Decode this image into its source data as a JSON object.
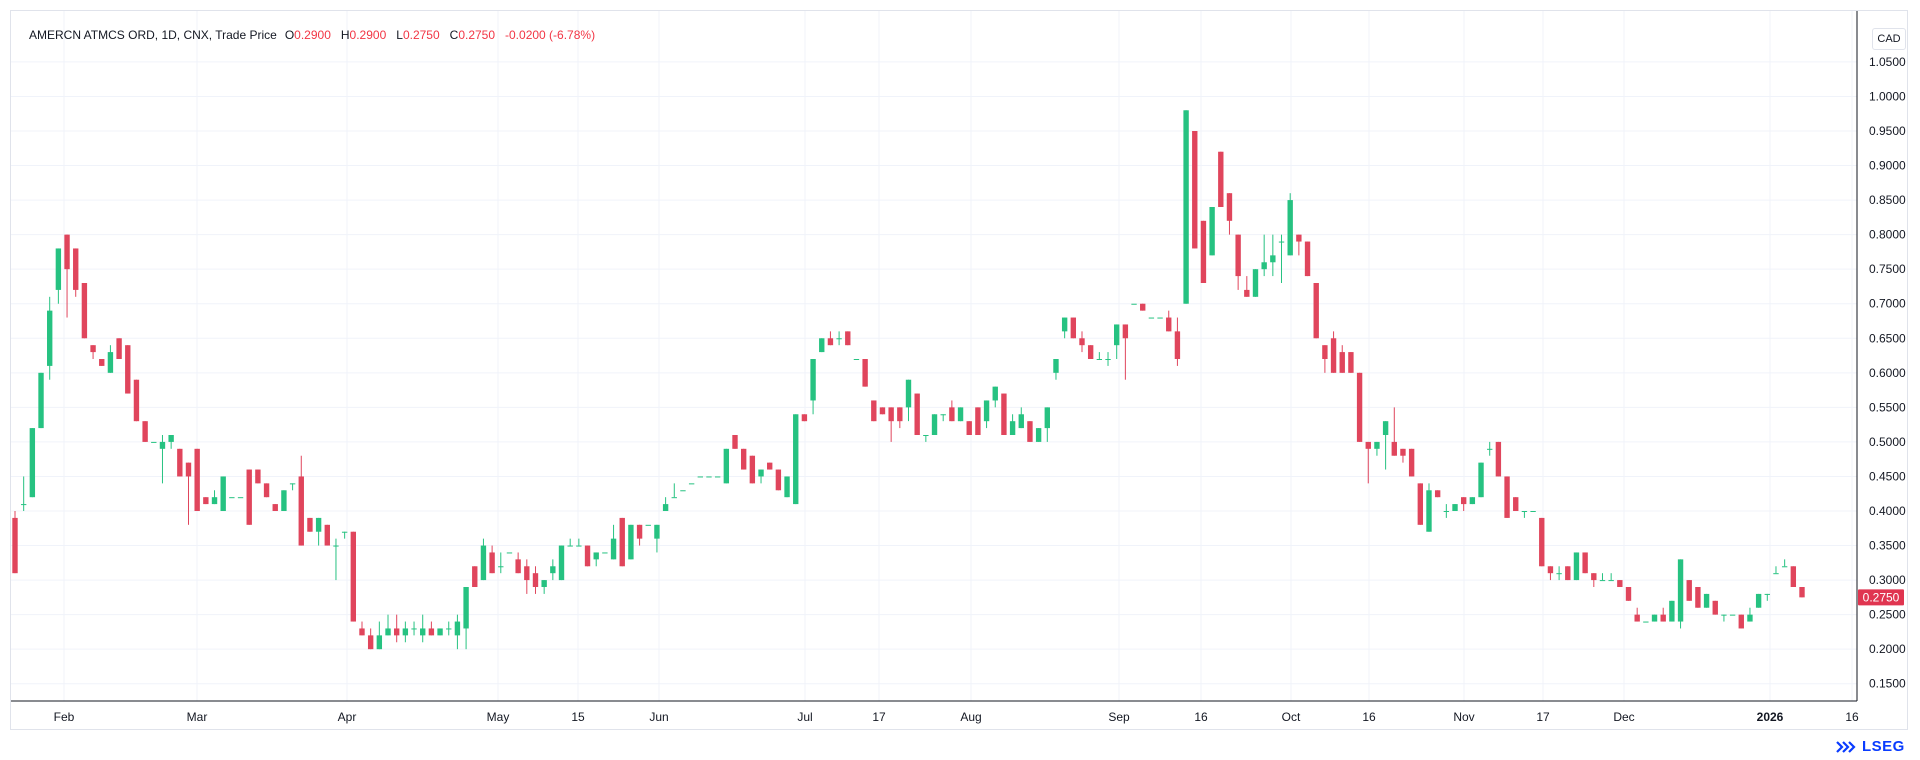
{
  "legend": {
    "symbol": "AMERCN ATMCS ORD, 1D, CNX, Trade Price",
    "open_label": "O",
    "open": "0.2900",
    "high_label": "H",
    "high": "0.2900",
    "low_label": "L",
    "low": "0.2750",
    "close_label": "C",
    "close": "0.2750",
    "change": "-0.0200 (-6.78%)"
  },
  "currency": "CAD",
  "last_price_tag": "0.2750",
  "brand": "LSEG",
  "colors": {
    "up": "#26c281",
    "down": "#e0455c",
    "grid": "#f0f3fa",
    "axis_text": "#131722",
    "price_tag": "#e03550"
  },
  "chart_data": {
    "type": "candlestick",
    "y_axis": {
      "min": 0.125,
      "max": 1.06,
      "ticks": [
        "0.1500",
        "0.2000",
        "0.2500",
        "0.3000",
        "0.3500",
        "0.4000",
        "0.4500",
        "0.5000",
        "0.5500",
        "0.6000",
        "0.6500",
        "0.7000",
        "0.7500",
        "0.8000",
        "0.8500",
        "0.9000",
        "0.9500",
        "1.0000",
        "1.0500"
      ]
    },
    "x_axis_labels": [
      "Feb",
      "Mar",
      "Apr",
      "May",
      "15",
      "Jun",
      "Jul",
      "17",
      "Aug",
      "Sep",
      "16",
      "Oct",
      "16",
      "Nov",
      "17",
      "Dec",
      "2026",
      "16"
    ],
    "grid": true,
    "candles": [
      [
        0.39,
        0.4,
        0.31,
        0.31
      ],
      [
        0.41,
        0.45,
        0.4,
        0.41
      ],
      [
        0.42,
        0.52,
        0.42,
        0.52
      ],
      [
        0.52,
        0.6,
        0.52,
        0.6
      ],
      [
        0.61,
        0.71,
        0.59,
        0.69
      ],
      [
        0.72,
        0.78,
        0.7,
        0.78
      ],
      [
        0.8,
        0.8,
        0.68,
        0.75
      ],
      [
        0.78,
        0.78,
        0.71,
        0.72
      ],
      [
        0.73,
        0.73,
        0.65,
        0.65
      ],
      [
        0.64,
        0.64,
        0.62,
        0.63
      ],
      [
        0.62,
        0.62,
        0.61,
        0.61
      ],
      [
        0.6,
        0.64,
        0.6,
        0.63
      ],
      [
        0.65,
        0.65,
        0.62,
        0.62
      ],
      [
        0.64,
        0.64,
        0.57,
        0.57
      ],
      [
        0.59,
        0.59,
        0.53,
        0.53
      ],
      [
        0.53,
        0.53,
        0.5,
        0.5
      ],
      [
        0.5,
        0.5,
        0.5,
        0.5
      ],
      [
        0.49,
        0.51,
        0.44,
        0.5
      ],
      [
        0.5,
        0.51,
        0.49,
        0.51
      ],
      [
        0.49,
        0.49,
        0.45,
        0.45
      ],
      [
        0.47,
        0.47,
        0.38,
        0.45
      ],
      [
        0.49,
        0.49,
        0.4,
        0.4
      ],
      [
        0.42,
        0.42,
        0.41,
        0.41
      ],
      [
        0.41,
        0.43,
        0.41,
        0.42
      ],
      [
        0.4,
        0.45,
        0.4,
        0.45
      ],
      [
        0.42,
        0.42,
        0.42,
        0.42
      ],
      [
        0.42,
        0.42,
        0.42,
        0.42
      ],
      [
        0.46,
        0.46,
        0.38,
        0.38
      ],
      [
        0.46,
        0.46,
        0.44,
        0.44
      ],
      [
        0.44,
        0.44,
        0.42,
        0.42
      ],
      [
        0.41,
        0.41,
        0.4,
        0.4
      ],
      [
        0.4,
        0.43,
        0.4,
        0.43
      ],
      [
        0.44,
        0.44,
        0.43,
        0.44
      ],
      [
        0.45,
        0.48,
        0.35,
        0.35
      ],
      [
        0.39,
        0.39,
        0.37,
        0.37
      ],
      [
        0.37,
        0.39,
        0.35,
        0.39
      ],
      [
        0.38,
        0.38,
        0.35,
        0.35
      ],
      [
        0.35,
        0.36,
        0.3,
        0.35
      ],
      [
        0.37,
        0.37,
        0.36,
        0.37
      ],
      [
        0.37,
        0.37,
        0.24,
        0.24
      ],
      [
        0.23,
        0.24,
        0.22,
        0.22
      ],
      [
        0.22,
        0.23,
        0.2,
        0.2
      ],
      [
        0.2,
        0.24,
        0.2,
        0.22
      ],
      [
        0.22,
        0.25,
        0.22,
        0.23
      ],
      [
        0.23,
        0.25,
        0.21,
        0.22
      ],
      [
        0.22,
        0.24,
        0.21,
        0.23
      ],
      [
        0.23,
        0.24,
        0.22,
        0.23
      ],
      [
        0.22,
        0.25,
        0.21,
        0.23
      ],
      [
        0.23,
        0.24,
        0.22,
        0.22
      ],
      [
        0.22,
        0.23,
        0.22,
        0.23
      ],
      [
        0.23,
        0.24,
        0.22,
        0.23
      ],
      [
        0.22,
        0.25,
        0.2,
        0.24
      ],
      [
        0.23,
        0.29,
        0.2,
        0.29
      ],
      [
        0.32,
        0.32,
        0.29,
        0.29
      ],
      [
        0.3,
        0.36,
        0.3,
        0.35
      ],
      [
        0.34,
        0.35,
        0.31,
        0.31
      ],
      [
        0.32,
        0.34,
        0.31,
        0.32
      ],
      [
        0.34,
        0.34,
        0.34,
        0.34
      ],
      [
        0.33,
        0.34,
        0.31,
        0.31
      ],
      [
        0.32,
        0.33,
        0.28,
        0.3
      ],
      [
        0.31,
        0.32,
        0.28,
        0.29
      ],
      [
        0.29,
        0.3,
        0.28,
        0.3
      ],
      [
        0.31,
        0.33,
        0.3,
        0.32
      ],
      [
        0.3,
        0.35,
        0.3,
        0.35
      ],
      [
        0.35,
        0.36,
        0.35,
        0.35
      ],
      [
        0.35,
        0.36,
        0.35,
        0.35
      ],
      [
        0.35,
        0.35,
        0.32,
        0.32
      ],
      [
        0.33,
        0.34,
        0.32,
        0.34
      ],
      [
        0.34,
        0.34,
        0.34,
        0.34
      ],
      [
        0.33,
        0.38,
        0.33,
        0.36
      ],
      [
        0.39,
        0.39,
        0.32,
        0.32
      ],
      [
        0.33,
        0.38,
        0.33,
        0.38
      ],
      [
        0.38,
        0.38,
        0.35,
        0.36
      ],
      [
        0.38,
        0.38,
        0.38,
        0.38
      ],
      [
        0.36,
        0.38,
        0.34,
        0.38
      ],
      [
        0.4,
        0.42,
        0.4,
        0.41
      ],
      [
        0.42,
        0.44,
        0.42,
        0.42
      ],
      [
        0.43,
        0.43,
        0.43,
        0.43
      ],
      [
        0.44,
        0.44,
        0.44,
        0.44
      ],
      [
        0.45,
        0.45,
        0.45,
        0.45
      ],
      [
        0.45,
        0.45,
        0.45,
        0.45
      ],
      [
        0.45,
        0.45,
        0.45,
        0.45
      ],
      [
        0.44,
        0.49,
        0.44,
        0.49
      ],
      [
        0.51,
        0.51,
        0.49,
        0.49
      ],
      [
        0.49,
        0.49,
        0.46,
        0.46
      ],
      [
        0.48,
        0.48,
        0.44,
        0.44
      ],
      [
        0.45,
        0.46,
        0.44,
        0.46
      ],
      [
        0.47,
        0.47,
        0.46,
        0.46
      ],
      [
        0.46,
        0.46,
        0.43,
        0.43
      ],
      [
        0.42,
        0.45,
        0.42,
        0.45
      ],
      [
        0.41,
        0.54,
        0.41,
        0.54
      ],
      [
        0.54,
        0.54,
        0.53,
        0.53
      ],
      [
        0.56,
        0.62,
        0.54,
        0.62
      ],
      [
        0.63,
        0.65,
        0.63,
        0.65
      ],
      [
        0.65,
        0.66,
        0.64,
        0.64
      ],
      [
        0.65,
        0.66,
        0.64,
        0.65
      ],
      [
        0.66,
        0.66,
        0.64,
        0.64
      ],
      [
        0.62,
        0.62,
        0.62,
        0.62
      ],
      [
        0.62,
        0.62,
        0.58,
        0.58
      ],
      [
        0.56,
        0.56,
        0.53,
        0.53
      ],
      [
        0.55,
        0.55,
        0.54,
        0.54
      ],
      [
        0.55,
        0.55,
        0.5,
        0.53
      ],
      [
        0.55,
        0.55,
        0.52,
        0.53
      ],
      [
        0.55,
        0.59,
        0.53,
        0.59
      ],
      [
        0.57,
        0.57,
        0.51,
        0.51
      ],
      [
        0.51,
        0.51,
        0.5,
        0.51
      ],
      [
        0.51,
        0.54,
        0.51,
        0.54
      ],
      [
        0.54,
        0.54,
        0.53,
        0.54
      ],
      [
        0.55,
        0.56,
        0.53,
        0.53
      ],
      [
        0.53,
        0.55,
        0.53,
        0.55
      ],
      [
        0.53,
        0.53,
        0.51,
        0.51
      ],
      [
        0.55,
        0.55,
        0.51,
        0.51
      ],
      [
        0.53,
        0.56,
        0.52,
        0.56
      ],
      [
        0.56,
        0.58,
        0.55,
        0.58
      ],
      [
        0.57,
        0.57,
        0.51,
        0.51
      ],
      [
        0.51,
        0.54,
        0.51,
        0.53
      ],
      [
        0.52,
        0.55,
        0.52,
        0.54
      ],
      [
        0.53,
        0.53,
        0.5,
        0.5
      ],
      [
        0.5,
        0.52,
        0.5,
        0.52
      ],
      [
        0.52,
        0.55,
        0.5,
        0.55
      ],
      [
        0.6,
        0.62,
        0.59,
        0.62
      ],
      [
        0.66,
        0.68,
        0.65,
        0.68
      ],
      [
        0.68,
        0.68,
        0.65,
        0.65
      ],
      [
        0.65,
        0.66,
        0.63,
        0.64
      ],
      [
        0.64,
        0.64,
        0.62,
        0.62
      ],
      [
        0.62,
        0.63,
        0.62,
        0.62
      ],
      [
        0.62,
        0.63,
        0.61,
        0.62
      ],
      [
        0.64,
        0.67,
        0.62,
        0.67
      ],
      [
        0.67,
        0.67,
        0.59,
        0.65
      ],
      [
        0.7,
        0.7,
        0.7,
        0.7
      ],
      [
        0.7,
        0.7,
        0.69,
        0.69
      ],
      [
        0.68,
        0.68,
        0.68,
        0.68
      ],
      [
        0.68,
        0.68,
        0.68,
        0.68
      ],
      [
        0.68,
        0.69,
        0.66,
        0.66
      ],
      [
        0.66,
        0.68,
        0.61,
        0.62
      ],
      [
        0.7,
        0.98,
        0.7,
        0.98
      ],
      [
        0.95,
        0.95,
        0.78,
        0.78
      ],
      [
        0.82,
        0.82,
        0.73,
        0.73
      ],
      [
        0.77,
        0.84,
        0.77,
        0.84
      ],
      [
        0.92,
        0.92,
        0.84,
        0.84
      ],
      [
        0.86,
        0.86,
        0.8,
        0.82
      ],
      [
        0.8,
        0.8,
        0.72,
        0.74
      ],
      [
        0.72,
        0.74,
        0.71,
        0.71
      ],
      [
        0.71,
        0.75,
        0.71,
        0.75
      ],
      [
        0.75,
        0.8,
        0.74,
        0.76
      ],
      [
        0.76,
        0.8,
        0.74,
        0.77
      ],
      [
        0.79,
        0.8,
        0.73,
        0.79
      ],
      [
        0.77,
        0.86,
        0.77,
        0.85
      ],
      [
        0.8,
        0.8,
        0.77,
        0.79
      ],
      [
        0.79,
        0.79,
        0.74,
        0.74
      ],
      [
        0.73,
        0.73,
        0.65,
        0.65
      ],
      [
        0.64,
        0.64,
        0.6,
        0.62
      ],
      [
        0.65,
        0.66,
        0.6,
        0.6
      ],
      [
        0.63,
        0.64,
        0.6,
        0.6
      ],
      [
        0.63,
        0.63,
        0.6,
        0.6
      ],
      [
        0.6,
        0.6,
        0.5,
        0.5
      ],
      [
        0.5,
        0.5,
        0.44,
        0.49
      ],
      [
        0.49,
        0.5,
        0.48,
        0.5
      ],
      [
        0.51,
        0.53,
        0.46,
        0.53
      ],
      [
        0.5,
        0.55,
        0.48,
        0.48
      ],
      [
        0.49,
        0.49,
        0.47,
        0.48
      ],
      [
        0.49,
        0.49,
        0.45,
        0.45
      ],
      [
        0.44,
        0.44,
        0.38,
        0.38
      ],
      [
        0.37,
        0.44,
        0.37,
        0.43
      ],
      [
        0.43,
        0.43,
        0.42,
        0.42
      ],
      [
        0.4,
        0.41,
        0.39,
        0.4
      ],
      [
        0.4,
        0.41,
        0.4,
        0.41
      ],
      [
        0.42,
        0.42,
        0.4,
        0.41
      ],
      [
        0.41,
        0.42,
        0.41,
        0.42
      ],
      [
        0.42,
        0.47,
        0.42,
        0.47
      ],
      [
        0.49,
        0.5,
        0.48,
        0.49
      ],
      [
        0.5,
        0.5,
        0.45,
        0.45
      ],
      [
        0.45,
        0.45,
        0.39,
        0.39
      ],
      [
        0.42,
        0.42,
        0.4,
        0.4
      ],
      [
        0.4,
        0.4,
        0.39,
        0.4
      ],
      [
        0.4,
        0.4,
        0.4,
        0.4
      ],
      [
        0.39,
        0.39,
        0.32,
        0.32
      ],
      [
        0.32,
        0.32,
        0.3,
        0.31
      ],
      [
        0.31,
        0.32,
        0.3,
        0.31
      ],
      [
        0.32,
        0.32,
        0.3,
        0.3
      ],
      [
        0.3,
        0.34,
        0.3,
        0.34
      ],
      [
        0.34,
        0.34,
        0.31,
        0.31
      ],
      [
        0.31,
        0.31,
        0.29,
        0.3
      ],
      [
        0.3,
        0.31,
        0.3,
        0.3
      ],
      [
        0.3,
        0.31,
        0.3,
        0.3
      ],
      [
        0.3,
        0.3,
        0.29,
        0.29
      ],
      [
        0.29,
        0.29,
        0.27,
        0.27
      ],
      [
        0.25,
        0.26,
        0.24,
        0.24
      ],
      [
        0.24,
        0.24,
        0.24,
        0.24
      ],
      [
        0.24,
        0.25,
        0.24,
        0.25
      ],
      [
        0.25,
        0.26,
        0.24,
        0.24
      ],
      [
        0.24,
        0.27,
        0.24,
        0.27
      ],
      [
        0.24,
        0.33,
        0.23,
        0.33
      ],
      [
        0.3,
        0.3,
        0.27,
        0.27
      ],
      [
        0.29,
        0.29,
        0.26,
        0.26
      ],
      [
        0.26,
        0.28,
        0.26,
        0.28
      ],
      [
        0.27,
        0.27,
        0.25,
        0.25
      ],
      [
        0.25,
        0.25,
        0.24,
        0.25
      ],
      [
        0.25,
        0.25,
        0.25,
        0.25
      ],
      [
        0.25,
        0.25,
        0.23,
        0.23
      ],
      [
        0.24,
        0.26,
        0.24,
        0.25
      ],
      [
        0.26,
        0.28,
        0.26,
        0.28
      ],
      [
        0.28,
        0.28,
        0.27,
        0.28
      ],
      [
        0.31,
        0.32,
        0.31,
        0.31
      ],
      [
        0.32,
        0.33,
        0.32,
        0.32
      ],
      [
        0.32,
        0.32,
        0.29,
        0.29
      ],
      [
        0.29,
        0.29,
        0.275,
        0.275
      ]
    ]
  }
}
